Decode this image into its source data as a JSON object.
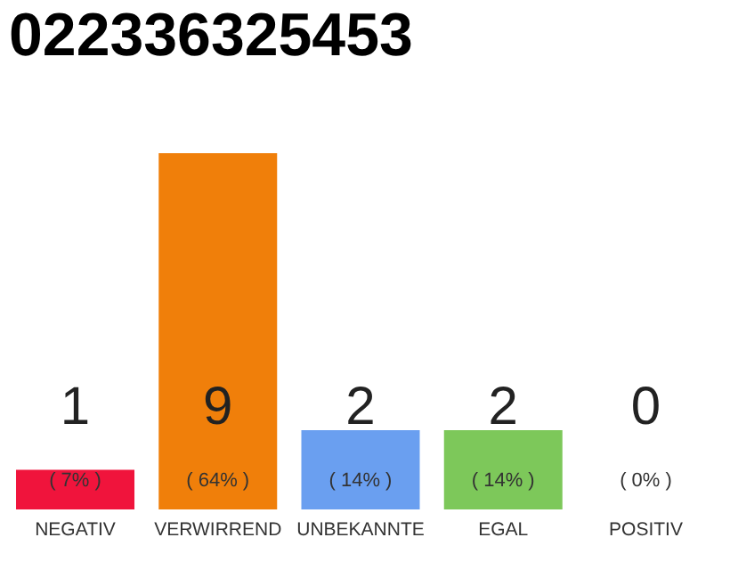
{
  "chart_data": {
    "type": "bar",
    "title": "022336325453",
    "categories": [
      "NEGATIV",
      "VERWIRREND",
      "UNBEKANNTE",
      "EGAL",
      "POSITIV"
    ],
    "values": [
      1,
      9,
      2,
      2,
      0
    ],
    "colors": [
      "#f0143c",
      "#f07f0a",
      "#6a9ff0",
      "#7dc85a",
      "#b0b0b0"
    ],
    "value_labels": [
      "1",
      "9",
      "2",
      "2",
      "0"
    ],
    "annotations": [
      "( 7% )",
      "( 64% )",
      "( 14% )",
      "( 14% )",
      "( 0% )"
    ]
  }
}
